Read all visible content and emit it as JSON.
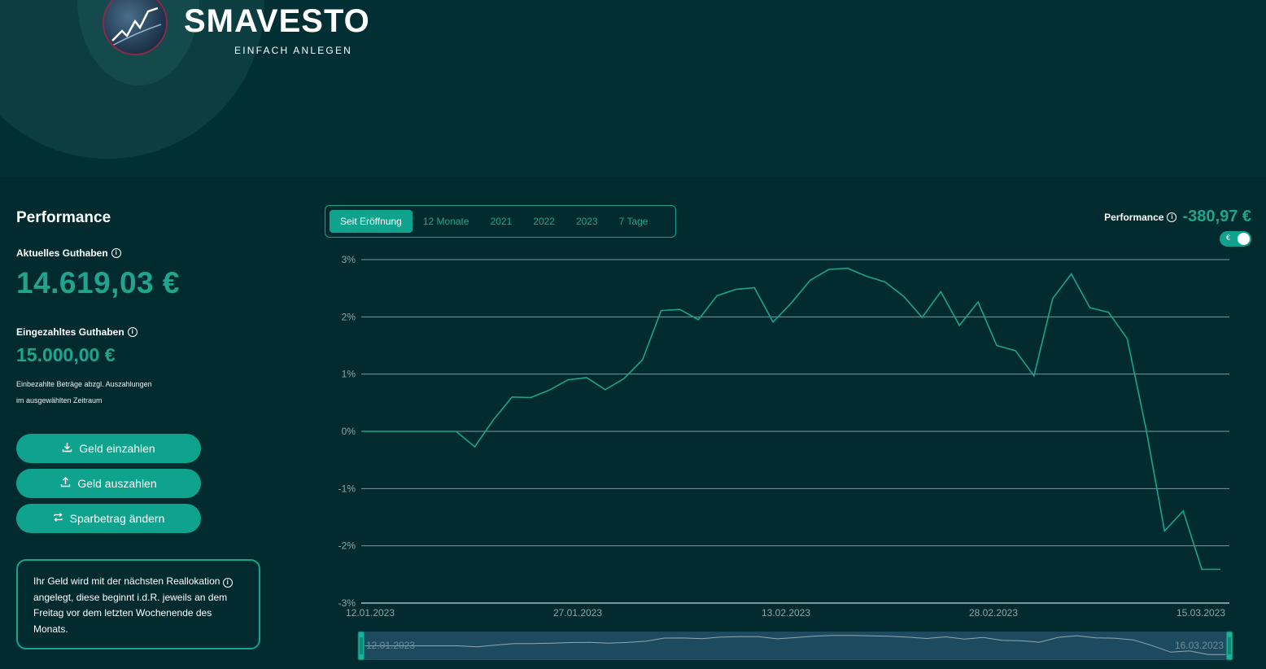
{
  "brand": {
    "name": "SMAVESTO",
    "tagline": "EINFACH ANLEGEN"
  },
  "sidebar": {
    "title": "Performance",
    "current_balance_label": "Aktuelles Guthaben",
    "current_balance": "14.619,03 €",
    "deposited_label": "Eingezahltes Guthaben",
    "deposited": "15.000,00 €",
    "note_line1": "Einbezahlte Beträge abzgl. Auszahlungen",
    "note_line2": "im ausgewählten Zeitraum",
    "buttons": {
      "deposit": "Geld einzahlen",
      "withdraw": "Geld auszahlen",
      "savings": "Sparbetrag ändern"
    },
    "info_text_1": "Ihr Geld wird mit der nächsten Reallokation",
    "info_text_2": "angelegt, diese beginnt i.d.R. jeweils an dem Freitag vor dem letzten Wochenende des Monats."
  },
  "tabs": [
    "Seit Eröffnung",
    "12 Monate",
    "2021",
    "2022",
    "2023",
    "7 Tage"
  ],
  "active_tab": 0,
  "performance": {
    "label": "Performance",
    "value": "-380,97 €",
    "toggle_label": "€",
    "toggle_on": true
  },
  "chart_data": {
    "type": "line",
    "y_unit": "%",
    "ylim": [
      -3,
      3
    ],
    "yticks": [
      3,
      2,
      1,
      0,
      -1,
      -2,
      -3
    ],
    "ytick_labels": [
      "3%",
      "2%",
      "1%",
      "0%",
      "-1%",
      "-2%",
      "-3%"
    ],
    "grid": true,
    "x_start": "12.01.2023",
    "x_end": "16.03.2023",
    "xtick_labels": [
      "12.01.2023",
      "27.01.2023",
      "13.02.2023",
      "28.02.2023",
      "15.03.2023"
    ],
    "values": [
      0,
      0,
      0,
      0,
      0,
      0,
      -0.27,
      0.2,
      0.6,
      0.59,
      0.72,
      0.9,
      0.94,
      0.73,
      0.92,
      1.25,
      2.11,
      2.13,
      1.95,
      2.37,
      2.48,
      2.51,
      1.91,
      2.25,
      2.64,
      2.83,
      2.85,
      2.71,
      2.61,
      2.36,
      1.99,
      2.44,
      1.85,
      2.26,
      1.5,
      1.41,
      0.97,
      2.32,
      2.75,
      2.16,
      2.08,
      1.62,
      0.06,
      -1.74,
      -1.39,
      -2.41,
      -2.41
    ],
    "navigator": {
      "start_label": "12.01.2023",
      "end_label": "16.03.2023"
    },
    "colors": {
      "line": "#1aa38f",
      "grid": "#7b9a9b",
      "navigator_bg": "#1d4a5e",
      "navigator_handle": "#19b39a"
    }
  }
}
